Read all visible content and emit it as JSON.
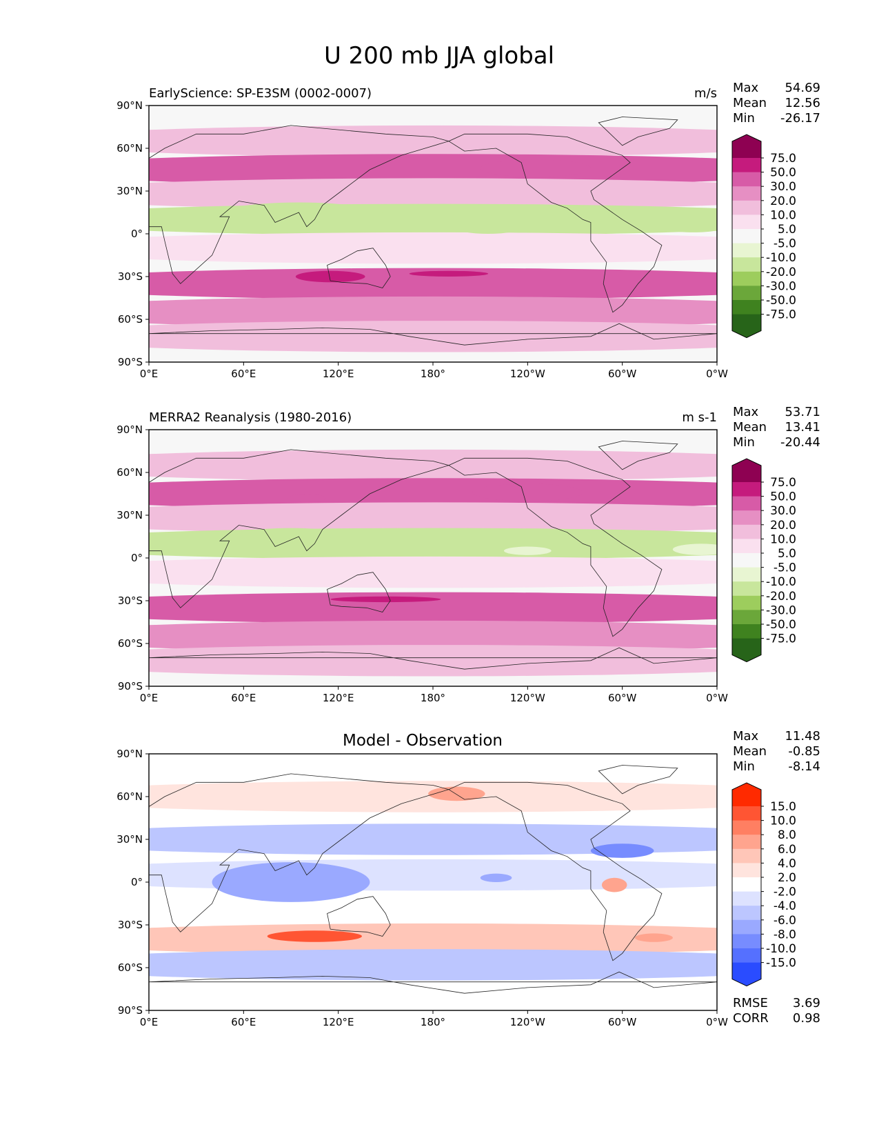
{
  "figure": {
    "title": "U 200 mb JJA global"
  },
  "chart_data": [
    {
      "type": "heatmap",
      "title": "EarlyScience: SP-E3SM (0002-0007)",
      "units": "m/s",
      "stats": [
        {
          "label": "Max",
          "value": "54.69"
        },
        {
          "label": "Mean",
          "value": "12.56"
        },
        {
          "label": "Min",
          "value": "-26.17"
        }
      ],
      "xticks": [
        "0°E",
        "60°E",
        "120°E",
        "180°",
        "120°W",
        "60°W",
        "0°W"
      ],
      "yticks": [
        "90°N",
        "60°N",
        "30°N",
        "0°",
        "30°S",
        "60°S",
        "90°S"
      ],
      "colorbar": {
        "labels": [
          "75.0",
          "50.0",
          "30.0",
          "20.0",
          "10.0",
          "5.0",
          "-5.0",
          "-10.0",
          "-20.0",
          "-30.0",
          "-50.0",
          "-75.0"
        ],
        "colors": [
          "#8e0152",
          "#c51b7d",
          "#d75ba7",
          "#e68fc3",
          "#f1bedc",
          "#fae0ef",
          "#f7f7f7",
          "#e8f5d2",
          "#c8e69c",
          "#9dcd5d",
          "#6ba73a",
          "#3f821f",
          "#276419"
        ]
      },
      "bands": [
        {
          "lat": 65,
          "value": 10
        },
        {
          "lat": 45,
          "value": 30
        },
        {
          "lat": 28,
          "value": 10
        },
        {
          "lat": 10,
          "value": -15
        },
        {
          "lat": -10,
          "value": 5
        },
        {
          "lat": -35,
          "value": 45
        },
        {
          "lat": -55,
          "value": 25
        },
        {
          "lat": -72,
          "value": 10
        }
      ],
      "blobs": [
        {
          "lon": 95,
          "lat": 12,
          "dlon": 55,
          "dlat": 10,
          "value": -20
        },
        {
          "lon": 215,
          "lat": 3,
          "dlon": 18,
          "dlat": 3,
          "value": -15
        },
        {
          "lon": 345,
          "lat": 6,
          "dlon": 22,
          "dlat": 5,
          "value": -15
        },
        {
          "lon": 100,
          "lat": 42,
          "dlon": 12,
          "dlat": 3,
          "value": 45
        },
        {
          "lon": 245,
          "lat": 46,
          "dlon": 35,
          "dlat": 6,
          "value": 30
        },
        {
          "lon": 115,
          "lat": -30,
          "dlon": 22,
          "dlat": 4,
          "value": 60
        },
        {
          "lon": 190,
          "lat": -28,
          "dlon": 25,
          "dlat": 2,
          "value": 60
        }
      ]
    },
    {
      "type": "heatmap",
      "title": "MERRA2 Reanalysis (1980-2016)",
      "units": "m s-1",
      "stats": [
        {
          "label": "Max",
          "value": "53.71"
        },
        {
          "label": "Mean",
          "value": "13.41"
        },
        {
          "label": "Min",
          "value": "-20.44"
        }
      ],
      "xticks": [
        "0°E",
        "60°E",
        "120°E",
        "180°",
        "120°W",
        "60°W",
        "0°W"
      ],
      "yticks": [
        "90°N",
        "60°N",
        "30°N",
        "0°",
        "30°S",
        "60°S",
        "90°S"
      ],
      "colorbar": {
        "labels": [
          "75.0",
          "50.0",
          "30.0",
          "20.0",
          "10.0",
          "5.0",
          "-5.0",
          "-10.0",
          "-20.0",
          "-30.0",
          "-50.0",
          "-75.0"
        ],
        "colors": [
          "#8e0152",
          "#c51b7d",
          "#d75ba7",
          "#e68fc3",
          "#f1bedc",
          "#fae0ef",
          "#f7f7f7",
          "#e8f5d2",
          "#c8e69c",
          "#9dcd5d",
          "#6ba73a",
          "#3f821f",
          "#276419"
        ]
      },
      "bands": [
        {
          "lat": 65,
          "value": 10
        },
        {
          "lat": 45,
          "value": 30
        },
        {
          "lat": 28,
          "value": 10
        },
        {
          "lat": 10,
          "value": -12
        },
        {
          "lat": -10,
          "value": 5
        },
        {
          "lat": -35,
          "value": 45
        },
        {
          "lat": -55,
          "value": 25
        },
        {
          "lat": -72,
          "value": 10
        }
      ],
      "blobs": [
        {
          "lon": 90,
          "lat": 12,
          "dlon": 45,
          "dlat": 9,
          "value": -15
        },
        {
          "lon": 240,
          "lat": 5,
          "dlon": 15,
          "dlat": 3,
          "value": -10
        },
        {
          "lon": 350,
          "lat": 6,
          "dlon": 18,
          "dlat": 4,
          "value": -10
        },
        {
          "lon": 100,
          "lat": 42,
          "dlon": 12,
          "dlat": 3,
          "value": 45
        },
        {
          "lon": 240,
          "lat": 46,
          "dlon": 35,
          "dlat": 6,
          "value": 30
        },
        {
          "lon": 150,
          "lat": -29,
          "dlon": 35,
          "dlat": 2,
          "value": 55
        }
      ]
    },
    {
      "type": "heatmap",
      "title": "Model - Observation",
      "stats": [
        {
          "label": "Max",
          "value": "11.48"
        },
        {
          "label": "Mean",
          "value": "-0.85"
        },
        {
          "label": "Min",
          "value": "-8.14"
        }
      ],
      "extra_stats": [
        {
          "label": "RMSE",
          "value": "3.69"
        },
        {
          "label": "CORR",
          "value": "0.98"
        }
      ],
      "xticks": [
        "0°E",
        "60°E",
        "120°E",
        "180°",
        "120°W",
        "60°W",
        "0°W"
      ],
      "yticks": [
        "90°N",
        "60°N",
        "30°N",
        "0°",
        "30°S",
        "60°S",
        "90°S"
      ],
      "colorbar": {
        "labels": [
          "15.0",
          "10.0",
          "8.0",
          "6.0",
          "4.0",
          "2.0",
          "-2.0",
          "-4.0",
          "-6.0",
          "-8.0",
          "-10.0",
          "-15.0"
        ],
        "colors": [
          "#ff2a00",
          "#ff5533",
          "#ff7f62",
          "#ffa48e",
          "#ffc6b8",
          "#ffe4de",
          "#ffffff",
          "#dde2ff",
          "#bcc6ff",
          "#9aa9ff",
          "#778cff",
          "#5570ff",
          "#2a4cff"
        ]
      },
      "bands": [
        {
          "lat": 60,
          "value": 3
        },
        {
          "lat": 30,
          "value": -5
        },
        {
          "lat": 5,
          "value": -4
        },
        {
          "lat": -40,
          "value": 5
        },
        {
          "lat": -58,
          "value": -5
        }
      ],
      "blobs": [
        {
          "lon": 90,
          "lat": 0,
          "dlon": 50,
          "dlat": 14,
          "value": -8
        },
        {
          "lon": 105,
          "lat": -38,
          "dlon": 30,
          "dlat": 4,
          "value": 12
        },
        {
          "lon": 300,
          "lat": 22,
          "dlon": 20,
          "dlat": 5,
          "value": -9
        },
        {
          "lon": 295,
          "lat": -2,
          "dlon": 8,
          "dlat": 5,
          "value": 7
        },
        {
          "lon": 195,
          "lat": 62,
          "dlon": 18,
          "dlat": 5,
          "value": 7
        },
        {
          "lon": 320,
          "lat": -39,
          "dlon": 12,
          "dlat": 3,
          "value": 7
        },
        {
          "lon": 220,
          "lat": 3,
          "dlon": 10,
          "dlat": 3,
          "value": -7
        }
      ]
    }
  ]
}
